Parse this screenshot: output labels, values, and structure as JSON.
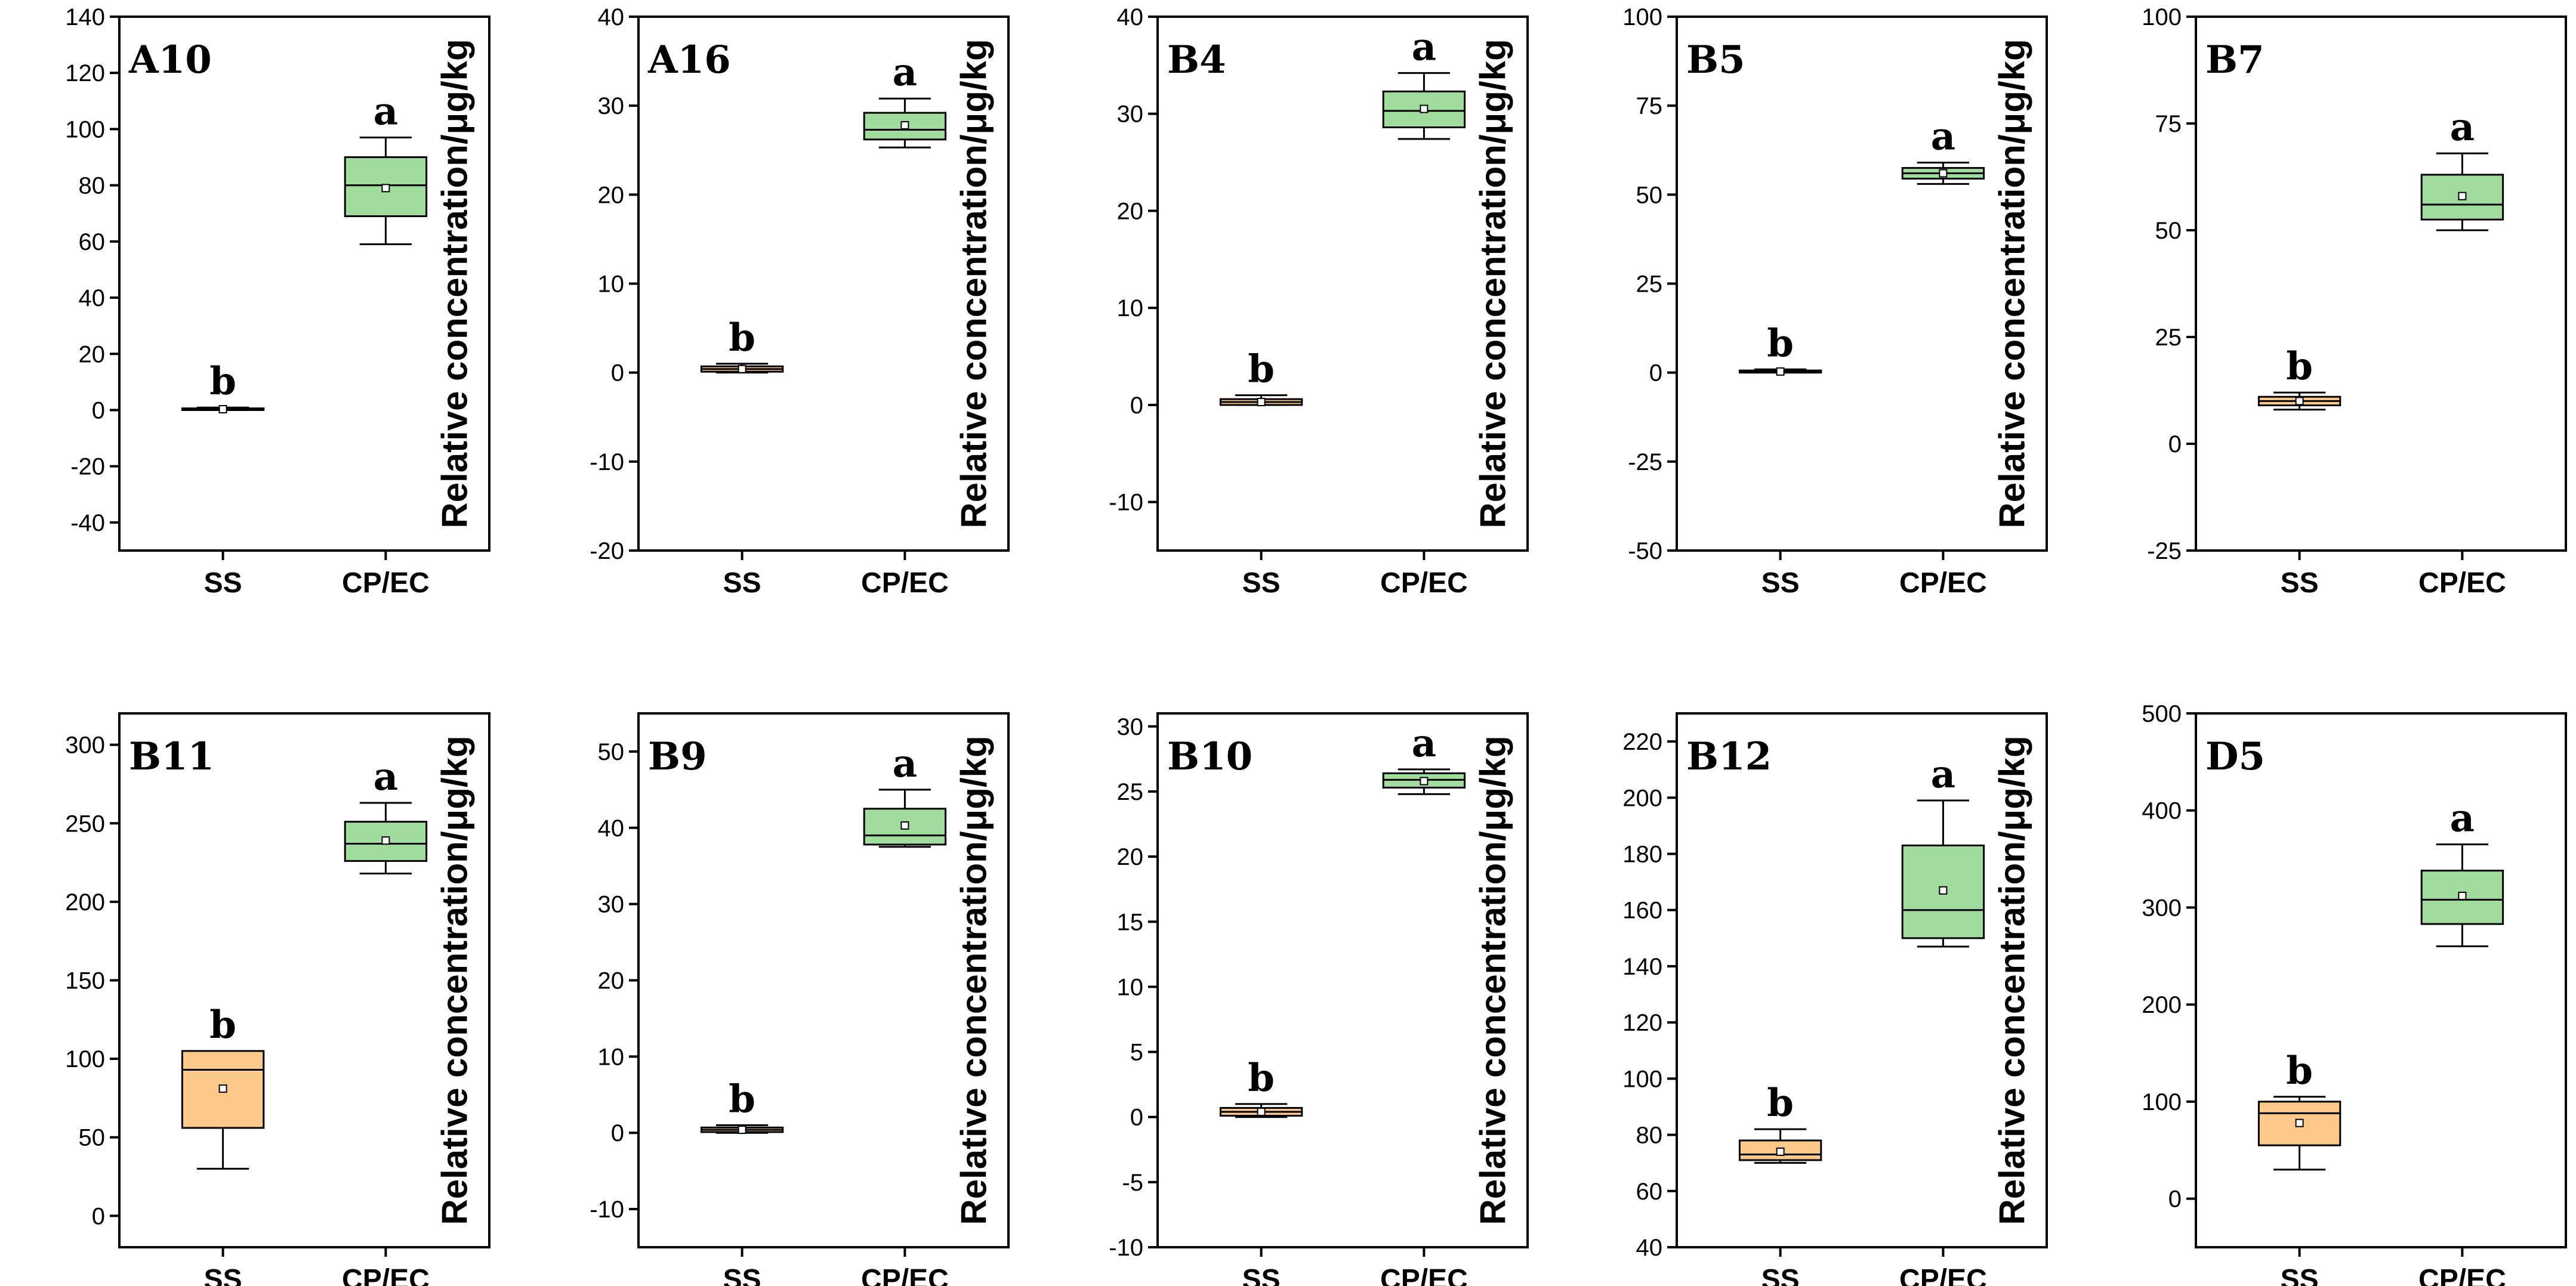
{
  "chart_data": [
    {
      "type": "box",
      "title": "A10",
      "ylabel": "Relative concentration/μg/kg",
      "ylim": [
        -50,
        140
      ],
      "yticks": [
        -40,
        -20,
        0,
        20,
        40,
        60,
        80,
        100,
        120,
        140
      ],
      "categories": [
        "SS",
        "CP/EC"
      ],
      "boxes": [
        {
          "min": 0,
          "q1": 0,
          "median": 0.3,
          "q3": 0.6,
          "max": 0.9,
          "mean": 0.3,
          "letter": "b",
          "color": "#fdc98b"
        },
        {
          "min": 59,
          "q1": 69,
          "median": 80,
          "q3": 90,
          "max": 97,
          "mean": 79,
          "letter": "a",
          "color": "#9fdc9e"
        }
      ]
    },
    {
      "type": "box",
      "title": "A16",
      "ylabel": "Relative concentration/μg/kg",
      "ylim": [
        -20,
        40
      ],
      "yticks": [
        -20,
        -10,
        0,
        10,
        20,
        30,
        40
      ],
      "categories": [
        "SS",
        "CP/EC"
      ],
      "boxes": [
        {
          "min": 0,
          "q1": 0.1,
          "median": 0.4,
          "q3": 0.7,
          "max": 1,
          "mean": 0.4,
          "letter": "b",
          "color": "#fdc98b"
        },
        {
          "min": 25.3,
          "q1": 26.2,
          "median": 27.3,
          "q3": 29.2,
          "max": 30.8,
          "mean": 27.8,
          "letter": "a",
          "color": "#9fdc9e"
        }
      ]
    },
    {
      "type": "box",
      "title": "B4",
      "ylabel": "Relative concentration/μg/kg",
      "ylim": [
        -15,
        40
      ],
      "yticks": [
        -10,
        0,
        10,
        20,
        30,
        40
      ],
      "categories": [
        "SS",
        "CP/EC"
      ],
      "boxes": [
        {
          "min": 0,
          "q1": 0,
          "median": 0.3,
          "q3": 0.6,
          "max": 1,
          "mean": 0.3,
          "letter": "b",
          "color": "#fdc98b"
        },
        {
          "min": 27.4,
          "q1": 28.6,
          "median": 30.3,
          "q3": 32.3,
          "max": 34.2,
          "mean": 30.5,
          "letter": "a",
          "color": "#9fdc9e"
        }
      ]
    },
    {
      "type": "box",
      "title": "B5",
      "ylabel": "Relative concentration/μg/kg",
      "ylim": [
        -50,
        100
      ],
      "yticks": [
        -50,
        -25,
        0,
        25,
        50,
        75,
        100
      ],
      "categories": [
        "SS",
        "CP/EC"
      ],
      "boxes": [
        {
          "min": 0,
          "q1": 0,
          "median": 0.3,
          "q3": 0.6,
          "max": 0.9,
          "mean": 0.3,
          "letter": "b",
          "color": "#fdc98b"
        },
        {
          "min": 53,
          "q1": 54.5,
          "median": 56,
          "q3": 57.5,
          "max": 59,
          "mean": 56,
          "letter": "a",
          "color": "#9fdc9e"
        }
      ]
    },
    {
      "type": "box",
      "title": "B7",
      "ylabel": "Relative concentration/μg/kg",
      "ylim": [
        -25,
        100
      ],
      "yticks": [
        -25,
        0,
        25,
        50,
        75,
        100
      ],
      "categories": [
        "SS",
        "CP/EC"
      ],
      "boxes": [
        {
          "min": 8,
          "q1": 9,
          "median": 10,
          "q3": 11,
          "max": 12,
          "mean": 10,
          "letter": "b",
          "color": "#fdc98b"
        },
        {
          "min": 50,
          "q1": 52.5,
          "median": 56,
          "q3": 63,
          "max": 68,
          "mean": 58,
          "letter": "a",
          "color": "#9fdc9e"
        }
      ]
    },
    {
      "type": "box",
      "title": "B11",
      "ylabel": "Relative concentration/μg/kg",
      "ylim": [
        -20,
        320
      ],
      "yticks": [
        0,
        50,
        100,
        150,
        200,
        250,
        300
      ],
      "categories": [
        "SS",
        "CP/EC"
      ],
      "boxes": [
        {
          "min": 30,
          "q1": 56,
          "median": 93,
          "q3": 105,
          "max": 105,
          "mean": 81,
          "letter": "b",
          "color": "#fdc98b"
        },
        {
          "min": 218,
          "q1": 226,
          "median": 237,
          "q3": 251,
          "max": 263,
          "mean": 239,
          "letter": "a",
          "color": "#9fdc9e"
        }
      ]
    },
    {
      "type": "box",
      "title": "B9",
      "ylabel": "Relative concentration/μg/kg",
      "ylim": [
        -15,
        55
      ],
      "yticks": [
        -10,
        0,
        10,
        20,
        30,
        40,
        50
      ],
      "categories": [
        "SS",
        "CP/EC"
      ],
      "boxes": [
        {
          "min": 0,
          "q1": 0.1,
          "median": 0.4,
          "q3": 0.7,
          "max": 1,
          "mean": 0.4,
          "letter": "b",
          "color": "#fdc98b"
        },
        {
          "min": 37.5,
          "q1": 37.8,
          "median": 39,
          "q3": 42.5,
          "max": 45,
          "mean": 40.3,
          "letter": "a",
          "color": "#9fdc9e"
        }
      ]
    },
    {
      "type": "box",
      "title": "B10",
      "ylabel": "Relative concentration/μg/kg",
      "ylim": [
        -10,
        31
      ],
      "yticks": [
        -10,
        -5,
        0,
        5,
        10,
        15,
        20,
        25,
        30
      ],
      "categories": [
        "SS",
        "CP/EC"
      ],
      "boxes": [
        {
          "min": 0,
          "q1": 0.1,
          "median": 0.4,
          "q3": 0.7,
          "max": 1,
          "mean": 0.4,
          "letter": "b",
          "color": "#fdc98b"
        },
        {
          "min": 24.8,
          "q1": 25.3,
          "median": 25.9,
          "q3": 26.4,
          "max": 26.7,
          "mean": 25.8,
          "letter": "a",
          "color": "#9fdc9e"
        }
      ]
    },
    {
      "type": "box",
      "title": "B12",
      "ylabel": "Relative concentration/μg/kg",
      "ylim": [
        40,
        230
      ],
      "yticks": [
        40,
        60,
        80,
        100,
        120,
        140,
        160,
        180,
        200,
        220
      ],
      "categories": [
        "SS",
        "CP/EC"
      ],
      "boxes": [
        {
          "min": 70,
          "q1": 71,
          "median": 73,
          "q3": 78,
          "max": 82,
          "mean": 74,
          "letter": "b",
          "color": "#fdc98b"
        },
        {
          "min": 147,
          "q1": 150,
          "median": 160,
          "q3": 183,
          "max": 199,
          "mean": 167,
          "letter": "a",
          "color": "#9fdc9e"
        }
      ]
    },
    {
      "type": "box",
      "title": "D5",
      "ylabel": "Relative concentration/μg/kg",
      "ylim": [
        -50,
        500
      ],
      "yticks": [
        0,
        100,
        200,
        300,
        400,
        500
      ],
      "categories": [
        "SS",
        "CP/EC"
      ],
      "boxes": [
        {
          "min": 30,
          "q1": 55,
          "median": 88,
          "q3": 100,
          "max": 105,
          "mean": 78,
          "letter": "b",
          "color": "#fdc98b"
        },
        {
          "min": 260,
          "q1": 283,
          "median": 308,
          "q3": 338,
          "max": 365,
          "mean": 312,
          "letter": "a",
          "color": "#9fdc9e"
        }
      ]
    }
  ]
}
